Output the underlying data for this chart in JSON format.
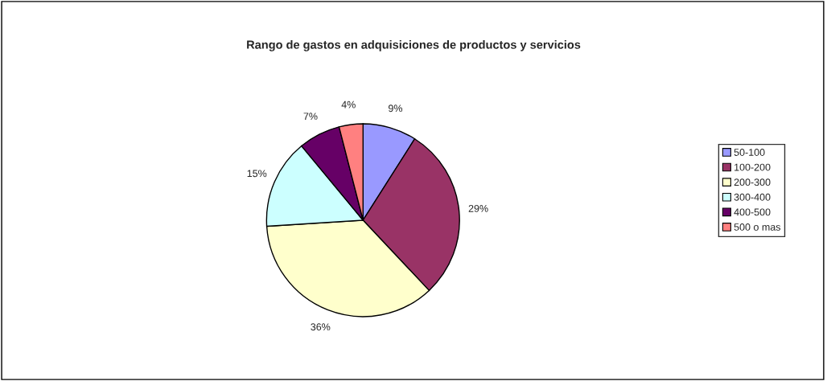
{
  "chart_data": {
    "type": "pie",
    "title": "Rango de gastos en adquisiciones de productos y servicios",
    "categories": [
      "50-100",
      "100-200",
      "200-300",
      "300-400",
      "400-500",
      "500 o mas"
    ],
    "values": [
      9,
      29,
      36,
      15,
      7,
      4
    ],
    "colors": [
      "#9999ff",
      "#993366",
      "#ffffcc",
      "#ccffff",
      "#660066",
      "#ff8080"
    ],
    "value_labels": [
      "9%",
      "29%",
      "36%",
      "15%",
      "7%",
      "4%"
    ],
    "legend": "right"
  }
}
